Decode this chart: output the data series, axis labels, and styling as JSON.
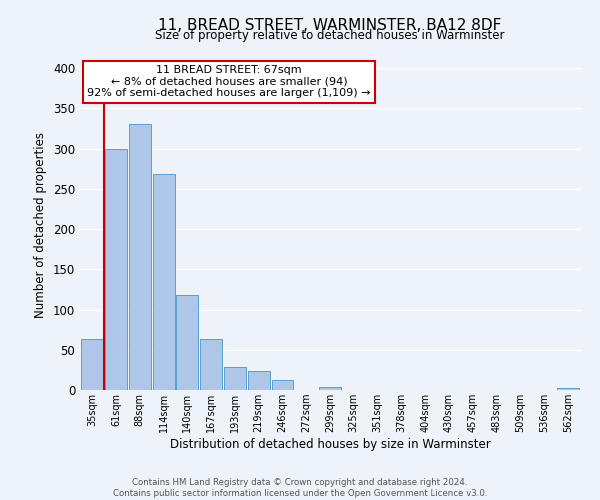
{
  "title": "11, BREAD STREET, WARMINSTER, BA12 8DF",
  "subtitle": "Size of property relative to detached houses in Warminster",
  "xlabel": "Distribution of detached houses by size in Warminster",
  "ylabel": "Number of detached properties",
  "bin_labels": [
    "35sqm",
    "61sqm",
    "88sqm",
    "114sqm",
    "140sqm",
    "167sqm",
    "193sqm",
    "219sqm",
    "246sqm",
    "272sqm",
    "299sqm",
    "325sqm",
    "351sqm",
    "378sqm",
    "404sqm",
    "430sqm",
    "457sqm",
    "483sqm",
    "509sqm",
    "536sqm",
    "562sqm"
  ],
  "bar_heights": [
    63,
    300,
    330,
    268,
    118,
    63,
    28,
    23,
    13,
    0,
    4,
    0,
    0,
    0,
    0,
    0,
    0,
    0,
    0,
    0,
    3
  ],
  "bar_color": "#aec6e8",
  "bar_edge_color": "#5a9fd4",
  "annotation_title": "11 BREAD STREET: 67sqm",
  "annotation_line1": "← 8% of detached houses are smaller (94)",
  "annotation_line2": "92% of semi-detached houses are larger (1,109) →",
  "annotation_box_color": "#ffffff",
  "annotation_box_edge": "#cc0000",
  "ylim": [
    0,
    410
  ],
  "yticks": [
    0,
    50,
    100,
    150,
    200,
    250,
    300,
    350,
    400
  ],
  "background_color": "#eef2f9",
  "grid_color": "#ffffff",
  "footer_line1": "Contains HM Land Registry data © Crown copyright and database right 2024.",
  "footer_line2": "Contains public sector information licensed under the Open Government Licence v3.0."
}
